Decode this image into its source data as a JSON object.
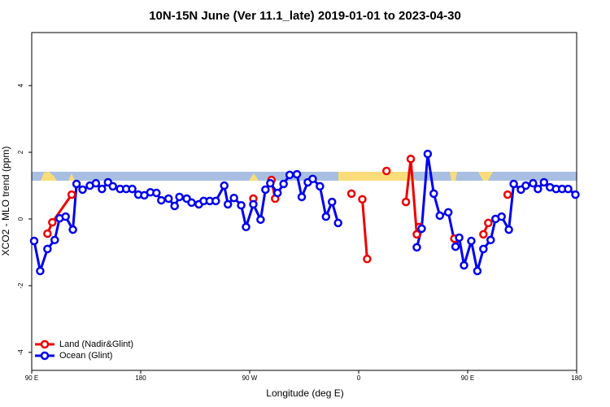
{
  "chart_data": {
    "type": "line",
    "title": "10N-15N June (Ver 11.1_late)   2019-01-01 to 2023-04-30",
    "x_label": "Longitude (deg E)",
    "y_label": "XCO2 - MLO trend (ppm)",
    "xlim": [
      90,
      540
    ],
    "xticks": [
      {
        "value": 90,
        "label": "90 E"
      },
      {
        "value": 180,
        "label": "180"
      },
      {
        "value": 270,
        "label": "90 W"
      },
      {
        "value": 360,
        "label": "0"
      },
      {
        "value": 450,
        "label": "90 E"
      },
      {
        "value": 540,
        "label": "180"
      }
    ],
    "ylim": [
      -4.54,
      5.59
    ],
    "yticks": [
      -4,
      -2,
      0,
      2,
      4
    ],
    "legend": "bottom-left",
    "series": [
      {
        "name": "Land (Nadir&Glint)",
        "color": "#ee0000",
        "x": [
          103,
          107,
          123,
          null,
          273,
          null,
          288,
          291,
          null,
          354,
          null,
          363,
          367,
          null,
          383,
          null,
          399,
          403,
          408,
          410,
          null,
          439,
          null,
          463,
          467,
          null,
          483
        ],
        "values": [
          -0.44,
          -0.1,
          0.73,
          null,
          0.61,
          null,
          1.17,
          0.61,
          null,
          0.76,
          null,
          0.59,
          -1.2,
          null,
          1.44,
          null,
          0.51,
          1.8,
          -0.46,
          -0.24,
          null,
          -0.59,
          null,
          -0.46,
          -0.12,
          null,
          0.73
        ]
      },
      {
        "name": "Ocean (Glint)",
        "color": "#0000ee",
        "x": [
          92,
          97,
          103,
          109,
          113,
          118,
          124,
          127,
          132,
          138,
          143,
          148,
          153,
          157,
          163,
          168,
          173,
          178,
          183,
          188,
          193,
          197,
          203,
          208,
          212,
          218,
          222,
          228,
          232,
          237,
          242,
          249,
          252,
          257,
          263,
          267,
          273,
          279,
          283,
          287,
          293,
          298,
          303,
          309,
          313,
          318,
          322,
          328,
          333,
          338,
          343,
          null,
          408,
          412,
          417,
          422,
          427,
          434,
          440,
          443,
          447,
          453,
          458,
          463,
          469,
          473,
          478,
          484,
          488,
          494,
          498,
          504,
          508,
          513,
          518,
          523,
          528,
          533,
          539
        ],
        "values": [
          -0.66,
          -1.56,
          -0.9,
          -0.63,
          0.02,
          0.07,
          -0.32,
          1.05,
          0.88,
          1.0,
          1.07,
          0.9,
          1.1,
          0.98,
          0.9,
          0.9,
          0.9,
          0.73,
          0.71,
          0.8,
          0.78,
          0.56,
          0.61,
          0.39,
          0.66,
          0.61,
          0.49,
          0.44,
          0.54,
          0.54,
          0.54,
          1.0,
          0.44,
          0.63,
          0.41,
          -0.24,
          0.44,
          -0.02,
          0.88,
          1.07,
          0.78,
          1.05,
          1.32,
          1.34,
          0.66,
          1.1,
          1.2,
          0.98,
          0.07,
          0.51,
          -0.12,
          null,
          -0.85,
          -0.29,
          1.95,
          0.76,
          0.1,
          0.2,
          -0.83,
          -0.56,
          -1.39,
          -0.66,
          -1.56,
          -0.9,
          -0.63,
          0.0,
          0.07,
          -0.32,
          1.05,
          0.88,
          1.0,
          1.07,
          0.9,
          1.1,
          0.95,
          0.9,
          0.9,
          0.9,
          0.73
        ]
      }
    ]
  }
}
